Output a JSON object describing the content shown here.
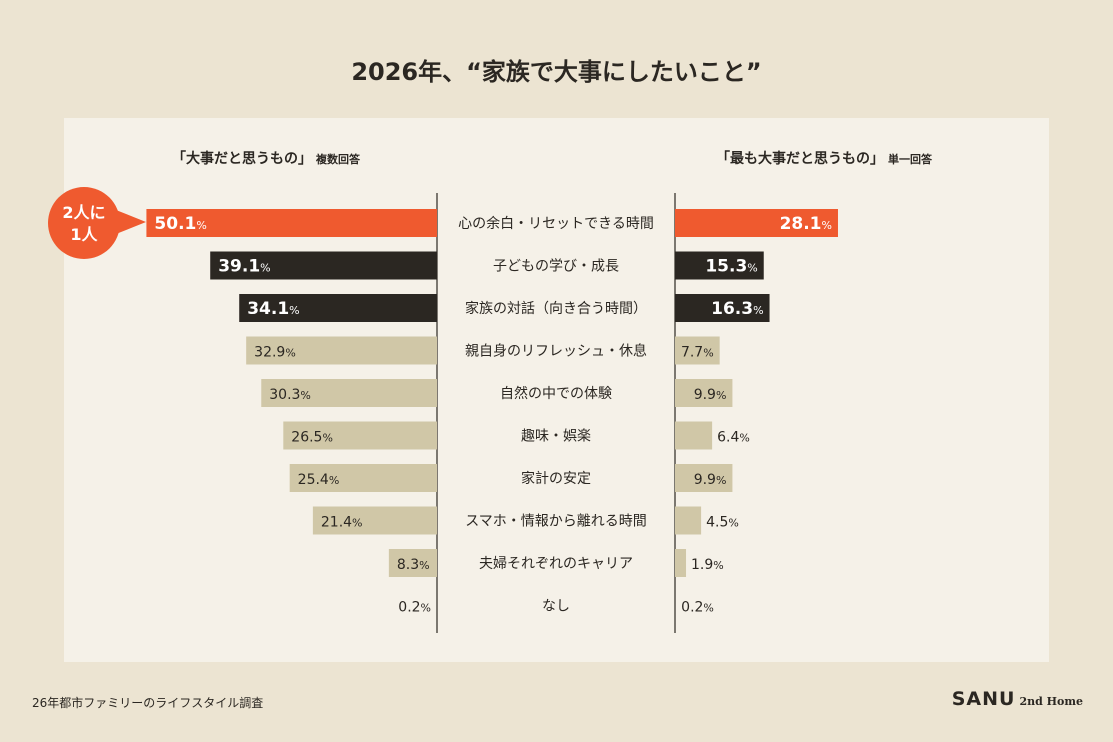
{
  "title": "2026年、“家族で大事にしたいこと”",
  "colors": {
    "background": "#ece4d2",
    "panel": "#f5f1e8",
    "highlight": "#ef5a2f",
    "dark": "#2b2722",
    "light": "#d0c7a7"
  },
  "callout": {
    "line1": "2人に",
    "line2": "1人"
  },
  "footer": "26年都市ファミリーのライフスタイル調査",
  "brand": {
    "name": "SANU",
    "suffix": "2nd Home"
  },
  "chart_data": {
    "type": "bar",
    "categories": [
      "心の余白・リセットできる時間",
      "子どもの学び・成長",
      "家族の対話（向き合う時間）",
      "親自身のリフレッシュ・休息",
      "自然の中での体験",
      "趣味・娯楽",
      "家計の安定",
      "スマホ・情報から離れる時間",
      "夫婦それぞれのキャリア",
      "なし"
    ],
    "unit": "%",
    "series": [
      {
        "name": "「大事だと思うもの」",
        "note": "複数回答",
        "values": [
          50.1,
          39.1,
          34.1,
          32.9,
          30.3,
          26.5,
          25.4,
          21.4,
          8.3,
          0.2
        ],
        "labels": [
          "50.1",
          "39.1",
          "34.1",
          "32.9",
          "30.3",
          "26.5",
          "25.4",
          "21.4",
          "8.3",
          "0.2"
        ]
      },
      {
        "name": "「最も大事だと思うもの」",
        "note": "単一回答",
        "values": [
          28.1,
          15.3,
          16.3,
          7.7,
          9.9,
          6.4,
          9.9,
          4.5,
          1.9,
          0.2
        ],
        "labels": [
          "28.1",
          "15.3",
          "16.3",
          "7.7",
          "9.9",
          "6.4",
          "9.9",
          "4.5",
          "1.9",
          "0.2"
        ]
      }
    ]
  }
}
